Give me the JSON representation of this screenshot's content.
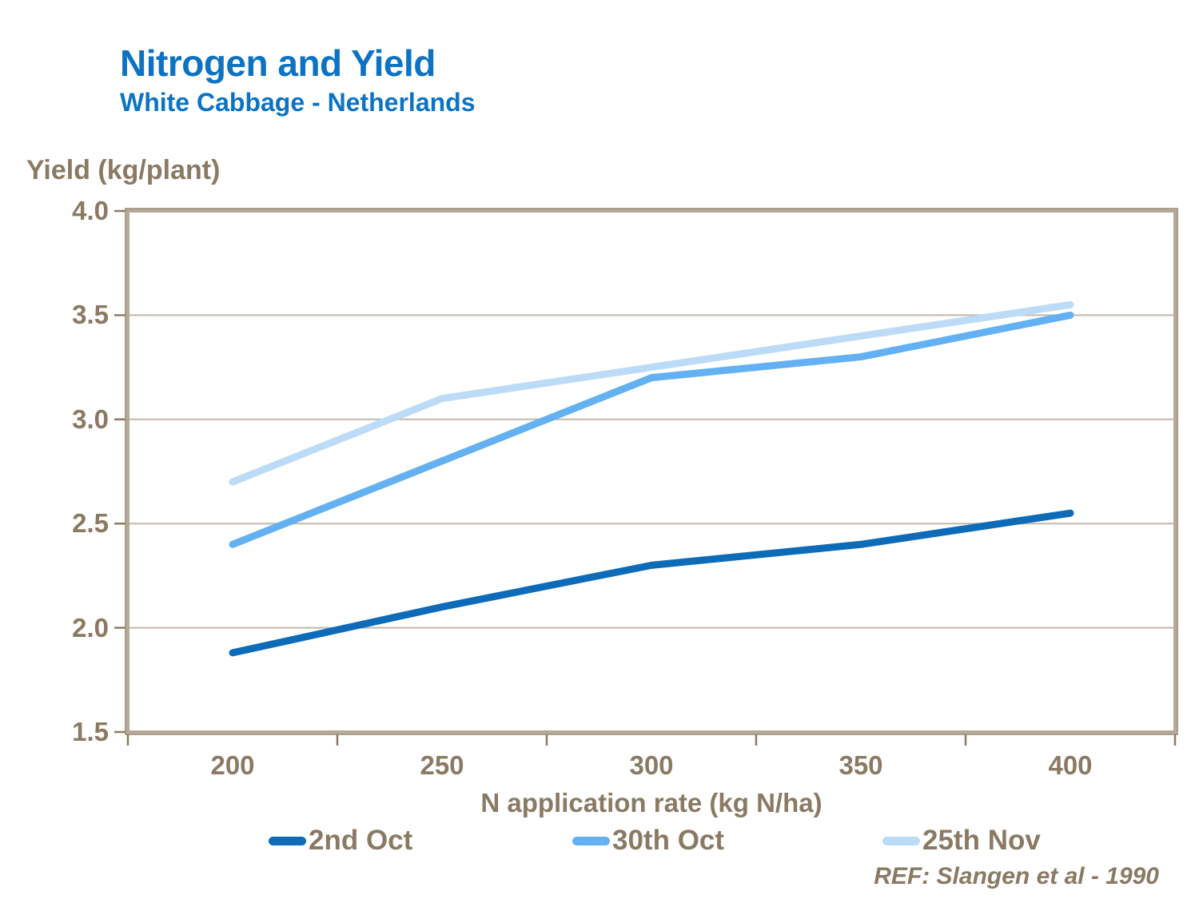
{
  "chart_data": {
    "type": "line",
    "title": "Nitrogen and Yield",
    "subtitle": "White Cabbage - Netherlands",
    "ylabel": "Yield (kg/plant)",
    "xlabel": "N application rate (kg N/ha)",
    "x": [
      200,
      250,
      300,
      350,
      400
    ],
    "series": [
      {
        "name": "2nd Oct",
        "color": "#0e6bb8",
        "values": [
          1.88,
          2.1,
          2.3,
          2.4,
          2.55
        ]
      },
      {
        "name": "30th Oct",
        "color": "#63b1f2",
        "values": [
          2.4,
          2.8,
          3.2,
          3.3,
          3.5
        ]
      },
      {
        "name": "25th Nov",
        "color": "#bcdbf7",
        "values": [
          2.7,
          3.1,
          3.25,
          3.4,
          3.55
        ]
      }
    ],
    "ylim": [
      1.5,
      4.0
    ],
    "ytick_step": 0.5,
    "grid": true,
    "legend_position": "bottom",
    "ref": "REF: Slangen et al - 1990"
  },
  "colors": {
    "title_blue": "#0c73c4",
    "axis_text_brown": "#8a7a63",
    "axis_border": "#b6a997",
    "axis_border_edge": "#8f7f69",
    "gridline": "#c2b8aa",
    "tick": "#8a7a63",
    "background": "#ffffff"
  }
}
